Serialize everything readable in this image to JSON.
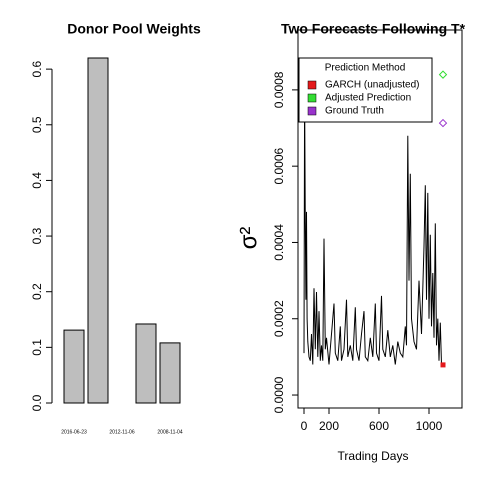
{
  "chart_data": [
    {
      "type": "bar",
      "title": "Donor Pool Weights",
      "categories": [
        "2016-06-23",
        null,
        "2012-11-06",
        null,
        "2008-11-04",
        null
      ],
      "values": [
        0.131,
        0.62,
        0,
        0.142,
        0.108,
        0
      ],
      "color": "#bebebe",
      "ylim": [
        0,
        0.62
      ],
      "yticks": [
        {
          "value": 0,
          "label": "0.0"
        },
        0.1,
        0.2,
        0.3,
        0.4,
        0.5,
        0.6
      ]
    },
    {
      "type": "line",
      "title": "Two Forecasts Following T*",
      "xlabel": "Trading Days",
      "ylabel": "σ²",
      "xlim": [
        -48,
        1264
      ],
      "ylim": [
        -3.4e-05,
        0.000957
      ],
      "xticks": [
        0,
        200,
        600,
        1000
      ],
      "yticks": [
        {
          "value": 0,
          "label": "0.0000"
        },
        0.0002,
        0.0004,
        0.0006,
        0.0008
      ],
      "legend_title": "Prediction Method",
      "legend": "top",
      "line": {
        "color": "#000000",
        "x": [
          0,
          5,
          10,
          15,
          20,
          25,
          30,
          40,
          50,
          60,
          70,
          80,
          90,
          100,
          110,
          120,
          130,
          140,
          150,
          160,
          170,
          180,
          200,
          220,
          240,
          250,
          270,
          290,
          300,
          320,
          340,
          350,
          370,
          390,
          410,
          420,
          440,
          460,
          480,
          490,
          510,
          530,
          550,
          570,
          580,
          600,
          620,
          630,
          650,
          670,
          690,
          710,
          730,
          750,
          770,
          790,
          810,
          820,
          830,
          840,
          850,
          860,
          880,
          900,
          920,
          940,
          960,
          970,
          980,
          990,
          1000,
          1010,
          1020,
          1030,
          1040,
          1050,
          1060,
          1070,
          1080,
          1090,
          1100
        ],
        "values": [
          0.00011,
          0.0008,
          0.00045,
          0.00025,
          0.00048,
          0.0002,
          0.00014,
          0.0001,
          9e-05,
          0.00016,
          8e-05,
          0.00028,
          0.00012,
          0.00027,
          0.0001,
          0.00022,
          9e-05,
          0.00013,
          9e-05,
          0.00041,
          0.00012,
          0.00015,
          8e-05,
          0.00016,
          0.00024,
          0.00011,
          9e-05,
          0.00018,
          9e-05,
          0.00012,
          0.00025,
          0.0001,
          0.00013,
          9e-05,
          0.00023,
          0.00012,
          9e-05,
          0.00016,
          0.00022,
          0.0001,
          9e-05,
          0.00015,
          0.0001,
          0.00024,
          0.00011,
          9e-05,
          0.00026,
          0.00012,
          0.0001,
          0.00017,
          0.0001,
          0.00013,
          8e-05,
          0.00014,
          0.00011,
          0.0001,
          0.00018,
          0.00013,
          0.00068,
          0.0003,
          0.00058,
          0.0002,
          0.00014,
          0.00012,
          0.0003,
          0.00016,
          0.00039,
          0.00055,
          0.00025,
          0.00053,
          0.0002,
          0.00042,
          0.00018,
          0.00032,
          0.00015,
          0.00045,
          0.00013,
          0.0002,
          9e-05,
          0.00019,
          8e-05
        ]
      },
      "series": [
        {
          "name": "GARCH (unadjusted)",
          "color": "#e41a1c",
          "marker": "square",
          "x": 1112,
          "value": 7.9e-05
        },
        {
          "name": "Adjusted Prediction",
          "color": "#33dd33",
          "marker": "diamond",
          "x": 1112,
          "value": 0.00084
        },
        {
          "name": "Ground Truth",
          "color": "#9933cc",
          "marker": "diamond",
          "x": 1112,
          "value": 0.000713
        }
      ]
    }
  ]
}
